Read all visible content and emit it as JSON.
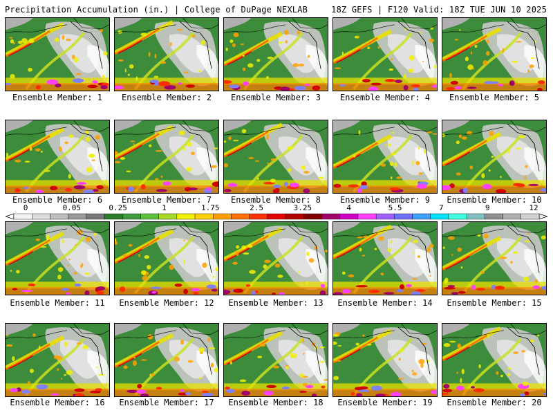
{
  "header": {
    "left_title": "Precipitation Accumulation (in.) | College of DuPage NEXLAB",
    "right_title": "18Z GEFS | F120 Valid: 18Z TUE JUN 10 2025"
  },
  "panels": [
    {
      "label": "Ensemble Member: 1"
    },
    {
      "label": "Ensemble Member: 2"
    },
    {
      "label": "Ensemble Member: 3"
    },
    {
      "label": "Ensemble Member: 4"
    },
    {
      "label": "Ensemble Member: 5"
    },
    {
      "label": "Ensemble Member: 6"
    },
    {
      "label": "Ensemble Member: 7"
    },
    {
      "label": "Ensemble Member: 8"
    },
    {
      "label": "Ensemble Member: 9"
    },
    {
      "label": "Ensemble Member: 10"
    },
    {
      "label": "Ensemble Member: 11"
    },
    {
      "label": "Ensemble Member: 12"
    },
    {
      "label": "Ensemble Member: 13"
    },
    {
      "label": "Ensemble Member: 14"
    },
    {
      "label": "Ensemble Member: 15"
    },
    {
      "label": "Ensemble Member: 16"
    },
    {
      "label": "Ensemble Member: 17"
    },
    {
      "label": "Ensemble Member: 18"
    },
    {
      "label": "Ensemble Member: 19"
    },
    {
      "label": "Ensemble Member: 20"
    }
  ],
  "colorbar": {
    "tick_labels": [
      "0",
      "0.05",
      "0.25",
      "1",
      "1.75",
      "2.5",
      "3.25",
      "4",
      "5.5",
      "7",
      "9",
      "12"
    ],
    "colors": [
      "#f4f4f4",
      "#dcdcdc",
      "#bdbdbd",
      "#9a9a9a",
      "#787878",
      "#2e7d2e",
      "#3f9a3f",
      "#5fbf3f",
      "#a8d828",
      "#f0f000",
      "#ffd000",
      "#ffa000",
      "#ff7000",
      "#ff3000",
      "#e00000",
      "#b00000",
      "#800000",
      "#a0006a",
      "#d000c0",
      "#ff40ff",
      "#a060ff",
      "#7070ff",
      "#40a0ff",
      "#00e0ff",
      "#40ffe0",
      "#80c0c0",
      "#909090",
      "#b0b0b0",
      "#d0d0d0"
    ]
  }
}
